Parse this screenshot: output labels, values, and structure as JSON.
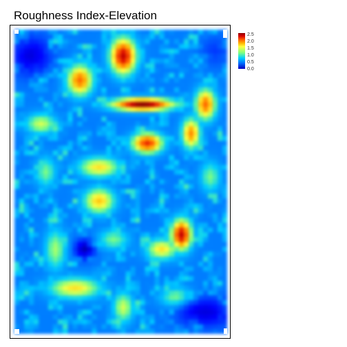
{
  "title": "Roughness Index-Elevation",
  "legend": {
    "labels": [
      "2.5",
      "2.0",
      "1.5",
      "1.0",
      "0.5",
      "0.0"
    ],
    "min": 0.0,
    "max": 2.5,
    "colors": [
      "#00008b",
      "#0000ff",
      "#0080ff",
      "#00d0ff",
      "#80ff80",
      "#ffff40",
      "#ffb300",
      "#ff5a00",
      "#d60000",
      "#8b0000"
    ]
  },
  "raster": {
    "cols": 44,
    "rows": 63,
    "background_value": 0.55,
    "hotspots": [
      {
        "c": 22,
        "r": 5,
        "v": 2.3,
        "rx": 2.5,
        "ry": 3.5
      },
      {
        "c": 13,
        "r": 10,
        "v": 1.9,
        "rx": 2.5,
        "ry": 3.0
      },
      {
        "c": 26,
        "r": 15,
        "v": 2.5,
        "rx": 6.0,
        "ry": 1.2
      },
      {
        "c": 39,
        "r": 15,
        "v": 1.9,
        "rx": 2.0,
        "ry": 3.0
      },
      {
        "c": 36,
        "r": 21,
        "v": 1.8,
        "rx": 1.8,
        "ry": 3.0
      },
      {
        "c": 27,
        "r": 23,
        "v": 2.1,
        "rx": 3.0,
        "ry": 2.0
      },
      {
        "c": 17,
        "r": 28,
        "v": 1.5,
        "rx": 4.0,
        "ry": 2.0
      },
      {
        "c": 17,
        "r": 35,
        "v": 1.6,
        "rx": 3.0,
        "ry": 2.5
      },
      {
        "c": 34,
        "r": 42,
        "v": 2.3,
        "rx": 2.0,
        "ry": 3.0
      },
      {
        "c": 30,
        "r": 45,
        "v": 1.5,
        "rx": 3.0,
        "ry": 2.0
      },
      {
        "c": 12,
        "r": 53,
        "v": 1.5,
        "rx": 5.0,
        "ry": 2.0
      },
      {
        "c": 8,
        "r": 45,
        "v": 1.2,
        "rx": 2.0,
        "ry": 4.0
      },
      {
        "c": 5,
        "r": 19,
        "v": 1.3,
        "rx": 3.0,
        "ry": 2.0
      },
      {
        "c": 22,
        "r": 57,
        "v": 1.3,
        "rx": 2.0,
        "ry": 3.0
      },
      {
        "c": 33,
        "r": 55,
        "v": 1.2,
        "rx": 3.0,
        "ry": 2.0
      },
      {
        "c": 20,
        "r": 43,
        "v": 1.1,
        "rx": 3.0,
        "ry": 2.0
      },
      {
        "c": 6,
        "r": 29,
        "v": 1.1,
        "rx": 2.0,
        "ry": 3.0
      },
      {
        "c": 40,
        "r": 30,
        "v": 1.1,
        "rx": 2.0,
        "ry": 3.0
      }
    ],
    "low_areas": [
      {
        "c": 3,
        "r": 5,
        "v": 0.2,
        "rx": 4.0,
        "ry": 4.0
      },
      {
        "c": 39,
        "r": 58,
        "v": 0.2,
        "rx": 6.0,
        "ry": 3.0
      },
      {
        "c": 14,
        "r": 45,
        "v": 0.1,
        "rx": 2.0,
        "ry": 2.0
      },
      {
        "c": 41,
        "r": 4,
        "v": 0.4,
        "rx": 3.0,
        "ry": 3.0
      }
    ]
  }
}
